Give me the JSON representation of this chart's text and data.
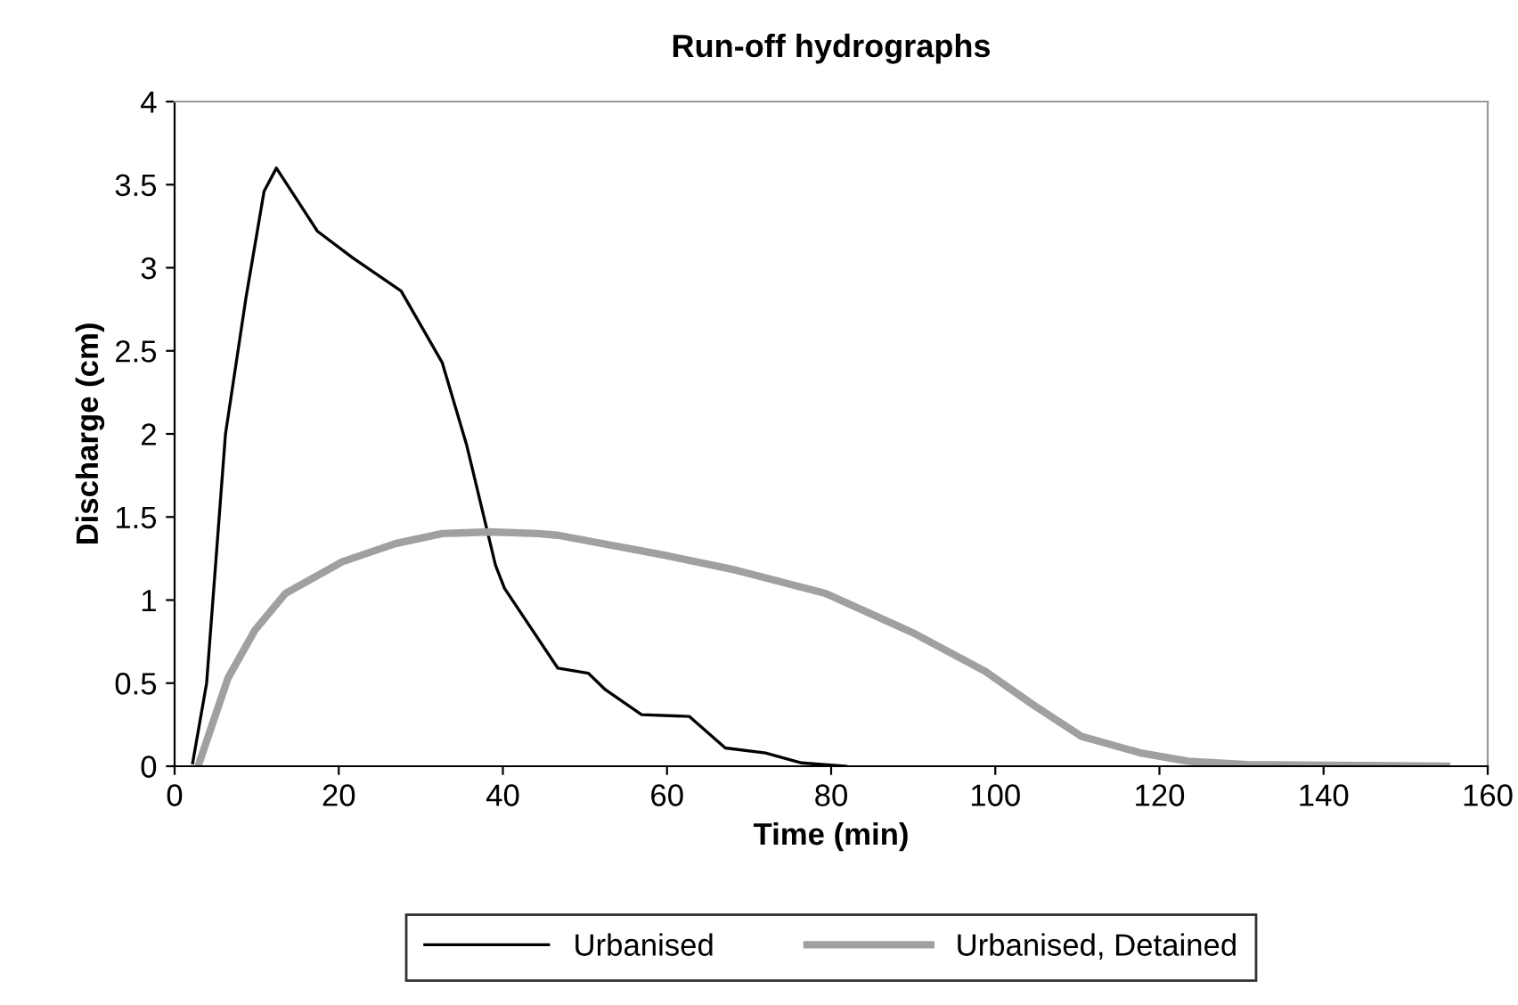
{
  "chart_data": {
    "type": "line",
    "title": "Run-off hydrographs",
    "xlabel": "Time (min)",
    "ylabel": "Discharge (cm)",
    "xlim": [
      0,
      160
    ],
    "xticks": [
      0,
      20,
      40,
      60,
      80,
      100,
      120,
      140,
      160
    ],
    "ylim": [
      0,
      4
    ],
    "yticks": [
      0,
      0.5,
      1,
      1.5,
      2,
      2.5,
      3,
      3.5,
      4
    ],
    "grid": false,
    "legend": "bottom",
    "marker": "none",
    "line_style": "solid",
    "series": [
      {
        "name": "Urbanised",
        "color": "#000000",
        "x": [
          2.2,
          3.9,
          6.2,
          8.7,
          10.9,
          12.4,
          17.4,
          21.7,
          27.6,
          32.6,
          35.6,
          39.1,
          40.2,
          46.7,
          50.4,
          52.5,
          56.9,
          62.7,
          67.1,
          72,
          76.4,
          81.8
        ],
        "values": [
          0.02,
          0.5,
          2.0,
          2.82,
          3.46,
          3.6,
          3.22,
          3.06,
          2.86,
          2.43,
          1.93,
          1.21,
          1.07,
          0.59,
          0.56,
          0.46,
          0.31,
          0.3,
          0.11,
          0.08,
          0.02,
          0
        ]
      },
      {
        "name": "Urbanised, Detained",
        "color": "#a0a0a0",
        "x": [
          3.0,
          6.5,
          9.8,
          13.5,
          20.4,
          26.9,
          32.6,
          38.4,
          44.3,
          46.7,
          59.7,
          68.4,
          79.3,
          90.1,
          98.8,
          104.6,
          110.5,
          117.7,
          123.5,
          130.7,
          155
        ],
        "values": [
          0.02,
          0.53,
          0.82,
          1.04,
          1.23,
          1.34,
          1.4,
          1.41,
          1.4,
          1.39,
          1.27,
          1.18,
          1.04,
          0.8,
          0.57,
          0.37,
          0.18,
          0.08,
          0.03,
          0.01,
          0
        ]
      }
    ]
  }
}
